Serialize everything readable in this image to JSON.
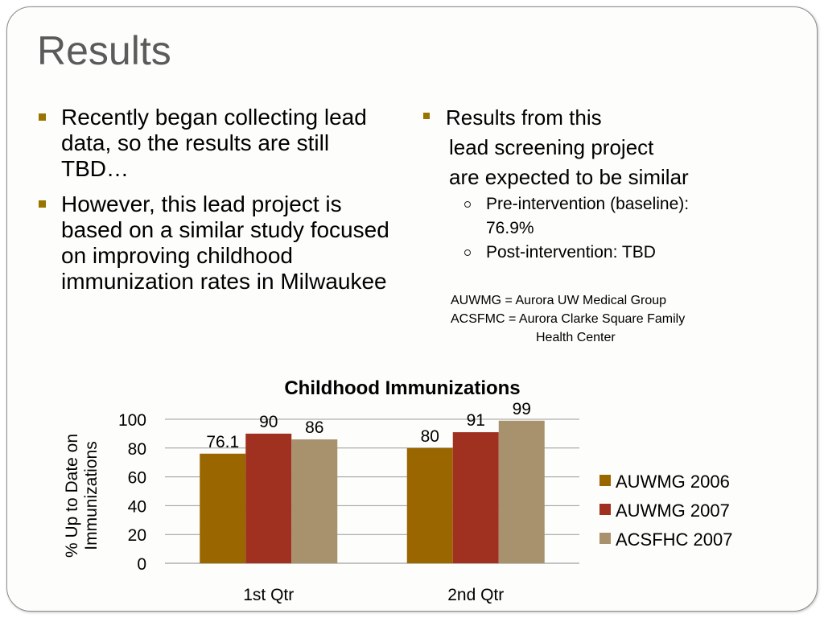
{
  "slide": {
    "title": "Results",
    "left_bullets": [
      "Recently began collecting lead data, so the results are still TBD…",
      "However, this lead project is based on a similar study focused on improving childhood immunization rates in Milwaukee"
    ],
    "right_bullet": {
      "lines": [
        "Results from this",
        "lead screening project",
        "are expected to be similar"
      ],
      "sub_items": [
        {
          "line1": "Pre-intervention (baseline):",
          "line2": "76.9%"
        },
        {
          "line1": "Post-intervention:  TBD",
          "line2": ""
        }
      ]
    },
    "abbreviations": {
      "line1": "AUWMG = Aurora UW Medical Group",
      "line2": "ACSFMC = Aurora Clarke Square Family",
      "line3": "Health Center"
    },
    "bullet_color": "#9a7400"
  },
  "chart_data": {
    "type": "bar",
    "title": "Childhood Immunizations",
    "ylabel_lines": [
      "% Up to Date on",
      "Immunizations"
    ],
    "xlabel": "",
    "categories": [
      "1st Qtr",
      "2nd Qtr"
    ],
    "ylim": [
      0,
      100
    ],
    "yticks": [
      0,
      20,
      40,
      60,
      80,
      100
    ],
    "grid": true,
    "legend_position": "right",
    "series": [
      {
        "name": "AUWMG 2006",
        "values": [
          76.1,
          80
        ],
        "labels": [
          "76.1",
          "80"
        ],
        "color": "#9a6600"
      },
      {
        "name": "AUWMG 2007",
        "values": [
          90,
          91
        ],
        "labels": [
          "90",
          "91"
        ],
        "color": "#a0301f"
      },
      {
        "name": "ACSFHC 2007",
        "values": [
          86,
          99
        ],
        "labels": [
          "86",
          "99"
        ],
        "color": "#a8926e"
      }
    ]
  }
}
